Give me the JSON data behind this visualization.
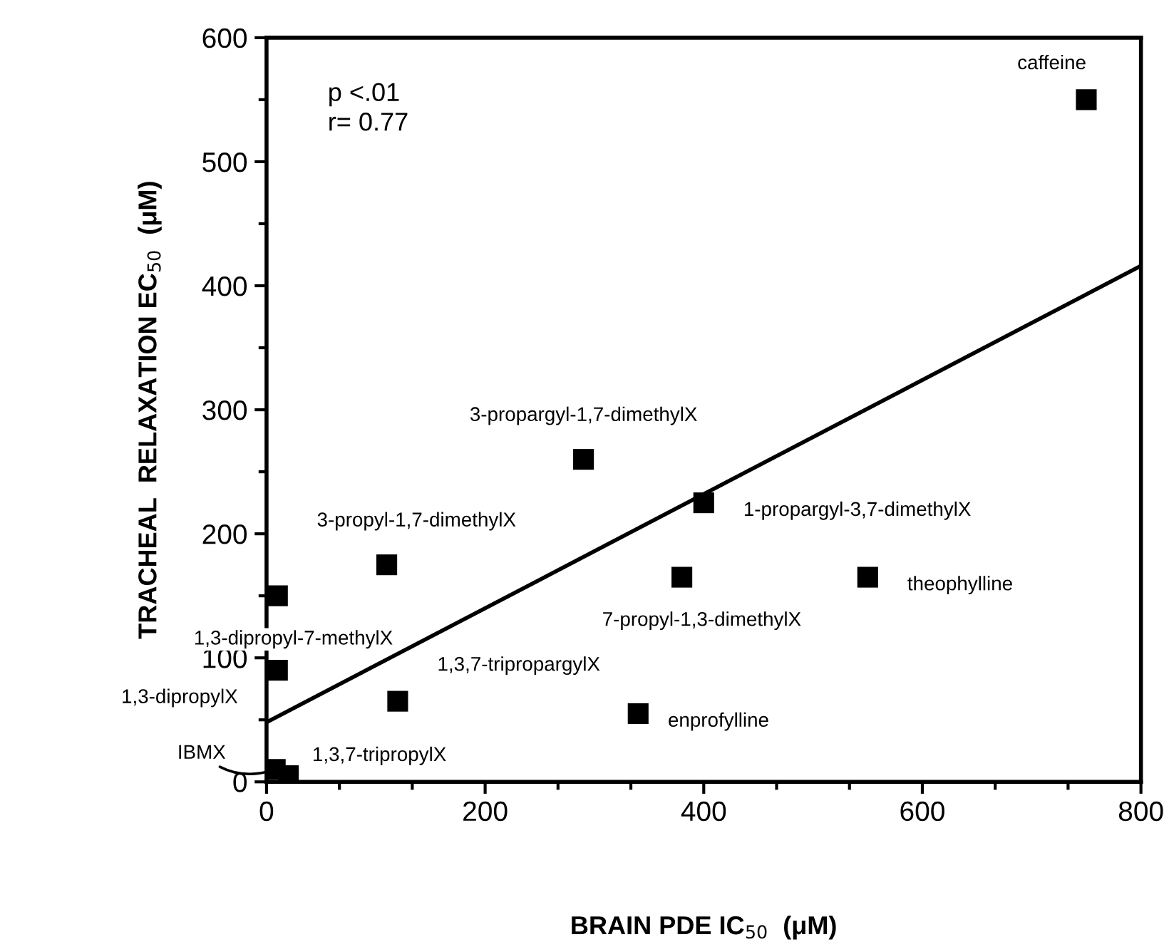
{
  "chart_data": {
    "type": "scatter",
    "xlabel": "BRAIN PDE IC$_{50}$  (μM)",
    "ylabel": "TRACHEAL  RELAXATION EC$_{50}$  (μM)",
    "xlim": [
      0,
      800
    ],
    "xticks": [
      0,
      200,
      400,
      600,
      800
    ],
    "ylim": [
      0,
      600
    ],
    "yticks": [
      0,
      100,
      200,
      300,
      400,
      500,
      600
    ],
    "grid": false,
    "series": [
      {
        "marker": "square",
        "color": "#000000",
        "x": [
          750,
          290,
          400,
          110,
          10,
          380,
          550,
          10,
          120,
          340,
          8,
          20
        ],
        "values": [
          550,
          260,
          225,
          175,
          150,
          165,
          165,
          90,
          65,
          55,
          10,
          5
        ]
      },
      {
        "type": "line",
        "color": "#000000",
        "x": [
          0,
          800
        ],
        "values": [
          48,
          416
        ]
      }
    ],
    "annotations": [
      "p <.01\nr= 0.77",
      {
        "text": "caffeine",
        "x": 750,
        "y": 550
      },
      {
        "text": "3-propargyl-1,7-dimethylX",
        "x": 290,
        "y": 260
      },
      {
        "text": "1-propargyl-3,7-dimethylX",
        "x": 400,
        "y": 225
      },
      {
        "text": "3-propyl-1,7-dimethylX",
        "x": 110,
        "y": 175
      },
      {
        "text": "1,3-dipropyl-7-methylX",
        "x": 10,
        "y": 150
      },
      {
        "text": "7-propyl-1,3-dimethylX",
        "x": 380,
        "y": 165
      },
      {
        "text": "theophylline",
        "x": 550,
        "y": 165
      },
      {
        "text": "1,3-dipropylX",
        "x": 10,
        "y": 90
      },
      {
        "text": "1,3,7-tripropargylX",
        "x": 120,
        "y": 65
      },
      {
        "text": "enprofylline",
        "x": 340,
        "y": 55
      },
      {
        "text": "IBMX",
        "x": 8,
        "y": 10
      },
      {
        "text": "1,3,7-tripropylX",
        "x": 20,
        "y": 5
      }
    ]
  }
}
